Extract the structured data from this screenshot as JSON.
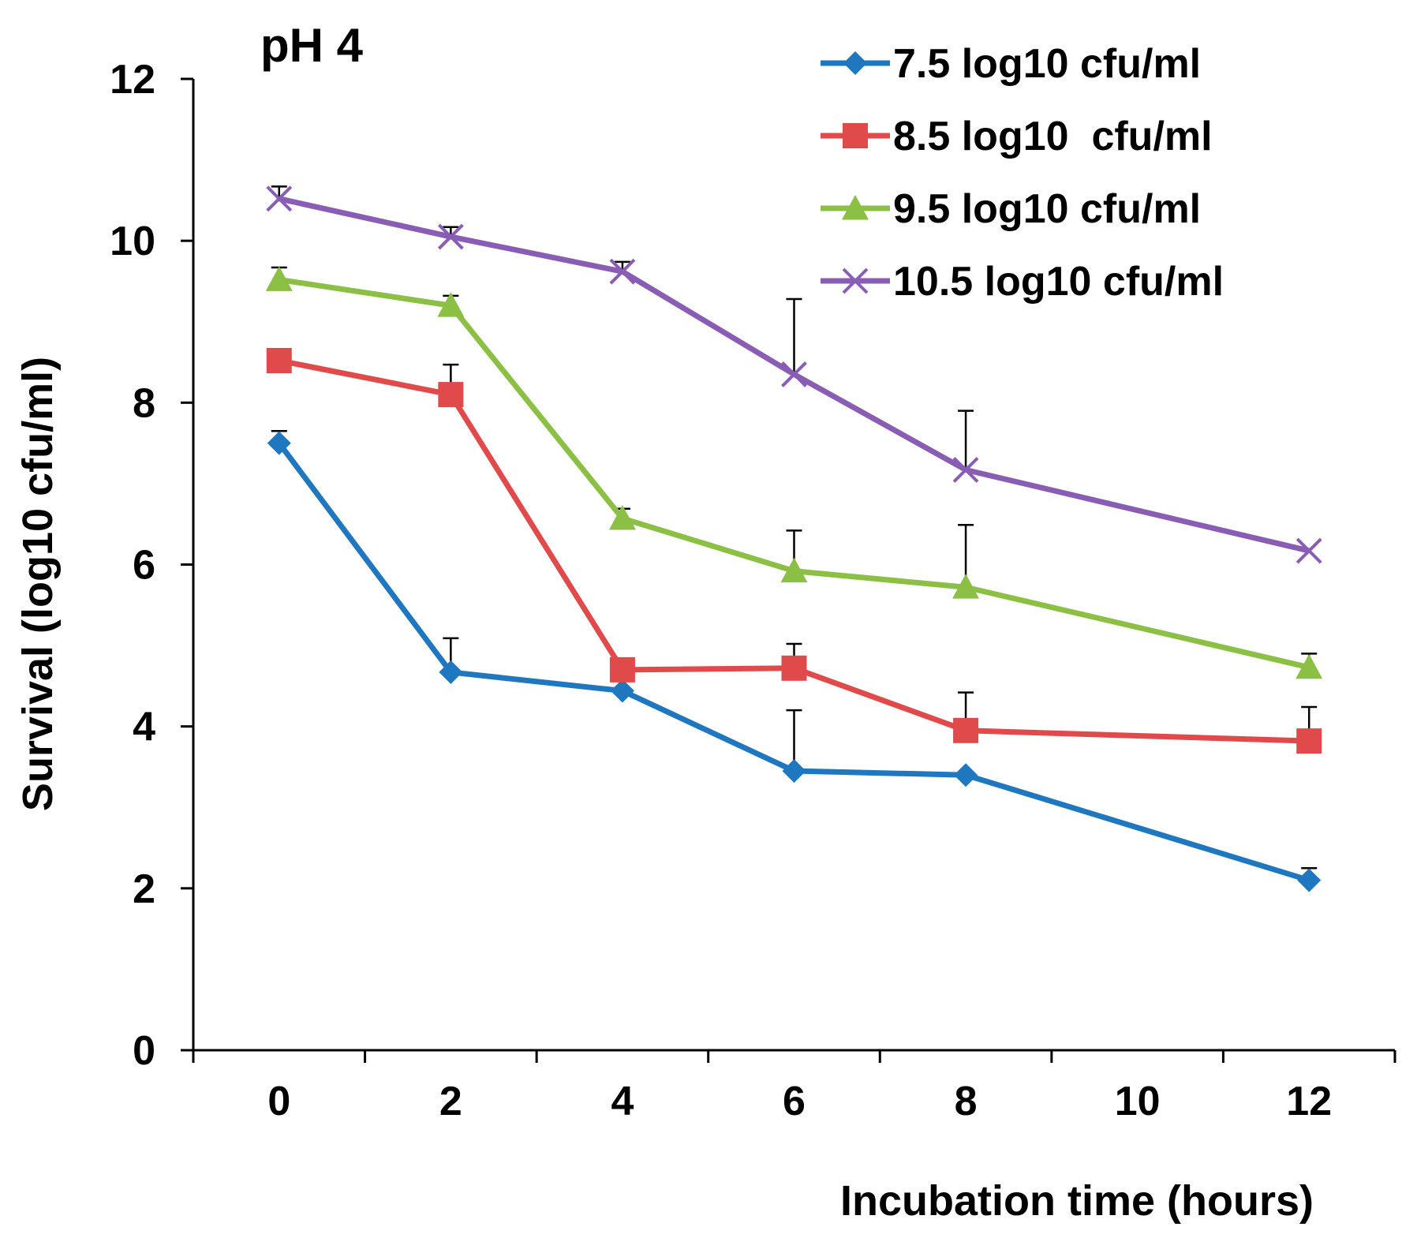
{
  "chart_data": {
    "type": "line",
    "title": "pH 4",
    "xlabel": "Incubation time (hours)",
    "ylabel": "Survival (log10 cfu/ml)",
    "xlim": [
      -1,
      13
    ],
    "ylim": [
      0,
      12
    ],
    "x_ticks": [
      -1,
      1,
      3,
      5,
      7,
      9,
      11,
      13
    ],
    "x_tick_labels": [
      "0",
      "2",
      "4",
      "6",
      "8",
      "10",
      "12"
    ],
    "x_tick_label_positions": [
      0,
      2,
      4,
      6,
      8,
      10,
      12
    ],
    "y_ticks": [
      0,
      2,
      4,
      6,
      8,
      10,
      12
    ],
    "y_tick_labels": [
      "0",
      "2",
      "4",
      "6",
      "8",
      "10",
      "12"
    ],
    "x": [
      0,
      2,
      4,
      6,
      8,
      12
    ],
    "grid": false,
    "legend_position": "top-right",
    "series": [
      {
        "name": "7.5 log10 cfu/ml",
        "color": "#1f77c0",
        "marker": "diamond",
        "values": [
          7.5,
          4.67,
          4.44,
          3.45,
          3.4,
          2.1
        ],
        "errors": [
          0.15,
          0.42,
          0,
          0.75,
          0,
          0.15
        ]
      },
      {
        "name": "8.5 log10  cfu/ml",
        "color": "#e04a4a",
        "marker": "square",
        "values": [
          8.52,
          8.1,
          4.7,
          4.72,
          3.95,
          3.82
        ],
        "errors": [
          0,
          0.37,
          0,
          0.3,
          0.47,
          0.42
        ]
      },
      {
        "name": "9.5 log10 cfu/ml",
        "color": "#8cc045",
        "marker": "triangle",
        "values": [
          9.52,
          9.2,
          6.57,
          5.92,
          5.72,
          4.73
        ],
        "errors": [
          0.15,
          0.12,
          0.12,
          0.5,
          0.77,
          0.17
        ]
      },
      {
        "name": "10.5 log10 cfu/ml",
        "color": "#8a5db5",
        "marker": "x",
        "values": [
          10.52,
          10.05,
          9.62,
          8.35,
          7.17,
          6.17
        ],
        "errors": [
          0.15,
          0.12,
          0.12,
          0.93,
          0.73,
          0
        ]
      }
    ]
  }
}
